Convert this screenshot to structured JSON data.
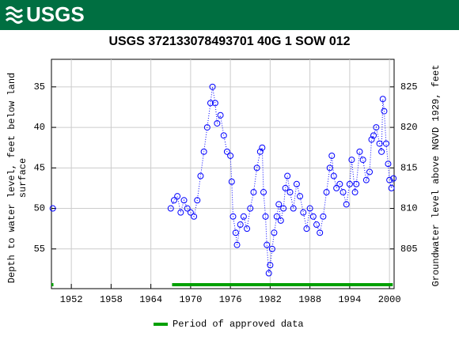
{
  "header": {
    "logo": "USGS"
  },
  "chart_data": {
    "type": "scatter",
    "title": "USGS 372133078493701 40G  1 SOW 012",
    "y_label": [
      "Depth to water level, feet below land",
      "surface"
    ],
    "y2_label": "Groundwater level above NGVD 1929, feet",
    "xlim": [
      1949.0,
      2000.7
    ],
    "xticks": [
      1952,
      1958,
      1964,
      1970,
      1976,
      1982,
      1988,
      1994,
      2000
    ],
    "ylim": [
      59.9,
      31.6
    ],
    "yticks": [
      35,
      40,
      45,
      50,
      55
    ],
    "y2lim": [
      800.1,
      828.4
    ],
    "y2ticks": [
      805,
      810,
      815,
      820,
      825
    ],
    "grid": true,
    "series": [
      {
        "name": "Depth to water level",
        "color": "#0000ff",
        "x": [
          1949.2,
          1958,
          1967,
          1967.5,
          1968,
          1968.5,
          1969,
          1969.5,
          1970,
          1970.5,
          1971,
          1971.5,
          1972,
          1972.5,
          1973,
          1973.3,
          1973.7,
          1974,
          1974.5,
          1975,
          1975.5,
          1976,
          1976.2,
          1976.4,
          1976.8,
          1977,
          1977.5,
          1978,
          1978.5,
          1979,
          1979.5,
          1980,
          1980.5,
          1980.8,
          1981,
          1981.3,
          1981.5,
          1981.8,
          1982,
          1982.3,
          1982.6,
          1983,
          1983.3,
          1983.6,
          1984,
          1984.3,
          1984.6,
          1985,
          1985.5,
          1986,
          1986.5,
          1987,
          1987.5,
          1988,
          1988.5,
          1989,
          1989.5,
          1990,
          1990.5,
          1991,
          1991.3,
          1991.6,
          1992,
          1992.5,
          1993,
          1993.5,
          1994,
          1994.3,
          1994.8,
          1995,
          1995.5,
          1996,
          1996.5,
          1997,
          1997.3,
          1997.6,
          1998,
          1998.5,
          1998.8,
          1999,
          1999.2,
          1999.5,
          1999.8,
          2000,
          2000.3,
          2000.6
        ],
        "values": [
          50.0,
          null,
          50,
          49,
          48.5,
          50.5,
          49,
          50,
          50.5,
          51,
          49,
          46,
          43,
          40,
          37,
          35,
          37,
          39.5,
          38.5,
          41,
          43,
          43.5,
          46.7,
          51,
          53,
          54.5,
          52,
          51,
          52.5,
          50,
          48,
          45,
          43,
          42.5,
          48,
          51,
          54.5,
          58,
          57,
          55,
          53,
          51,
          49.5,
          51.5,
          50,
          47.5,
          46,
          48,
          50,
          47,
          48.5,
          50.5,
          52.5,
          50,
          51,
          52,
          53,
          51,
          48,
          45,
          43.5,
          46,
          47.5,
          47,
          48,
          49.5,
          47,
          44,
          48,
          47,
          43,
          44,
          46.5,
          45.5,
          41.5,
          41,
          40,
          42,
          43,
          36.5,
          38,
          42,
          44.5,
          46.5,
          47.5,
          46.3
        ]
      }
    ],
    "approved": {
      "name": "Period of approved data",
      "color": "#00a000",
      "periods": [
        [
          1949.0,
          1949.3
        ],
        [
          1967.2,
          2000.5
        ]
      ]
    }
  }
}
